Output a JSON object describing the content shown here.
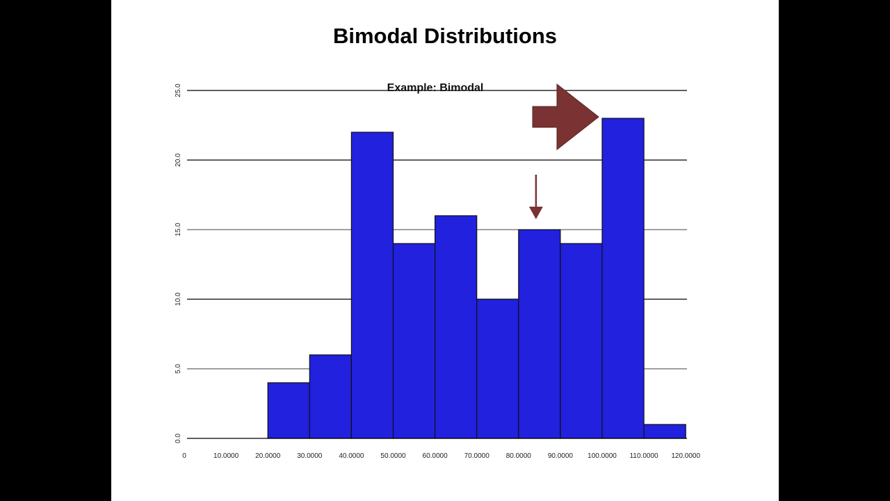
{
  "slide": {
    "title": "Bimodal Distributions"
  },
  "colors": {
    "bar_fill": "#2121DE",
    "bar_stroke": "#111111",
    "arrow": "#7A3232",
    "grid": "#000000",
    "background": "#FFFFFF",
    "frame": "#000000"
  },
  "chart_data": {
    "type": "bar",
    "title": "Example: Bimodal",
    "xlabel": "",
    "ylabel": "",
    "x_tick_labels": [
      "0",
      "10.0000",
      "20.0000",
      "30.0000",
      "40.0000",
      "50.0000",
      "60.0000",
      "70.0000",
      "80.0000",
      "90.0000",
      "100.0000",
      "110.0000",
      "120.0000"
    ],
    "y_tick_labels": [
      "0.0",
      "5.0",
      "10.0",
      "15.0",
      "20.0",
      "25.0"
    ],
    "xlim": [
      0,
      120
    ],
    "ylim": [
      0,
      25
    ],
    "grid": true,
    "bins": [
      {
        "start": 20,
        "end": 30,
        "value": 4
      },
      {
        "start": 30,
        "end": 40,
        "value": 6
      },
      {
        "start": 40,
        "end": 50,
        "value": 22
      },
      {
        "start": 50,
        "end": 60,
        "value": 14
      },
      {
        "start": 60,
        "end": 70,
        "value": 16
      },
      {
        "start": 70,
        "end": 80,
        "value": 10
      },
      {
        "start": 80,
        "end": 90,
        "value": 15
      },
      {
        "start": 90,
        "end": 100,
        "value": 14
      },
      {
        "start": 100,
        "end": 110,
        "value": 23
      },
      {
        "start": 110,
        "end": 120,
        "value": 1
      }
    ],
    "annotations": [
      {
        "type": "block-arrow",
        "points_to_bin": 8,
        "direction": "right"
      },
      {
        "type": "thin-arrow",
        "points_to_bin": 6,
        "direction": "down"
      }
    ]
  }
}
